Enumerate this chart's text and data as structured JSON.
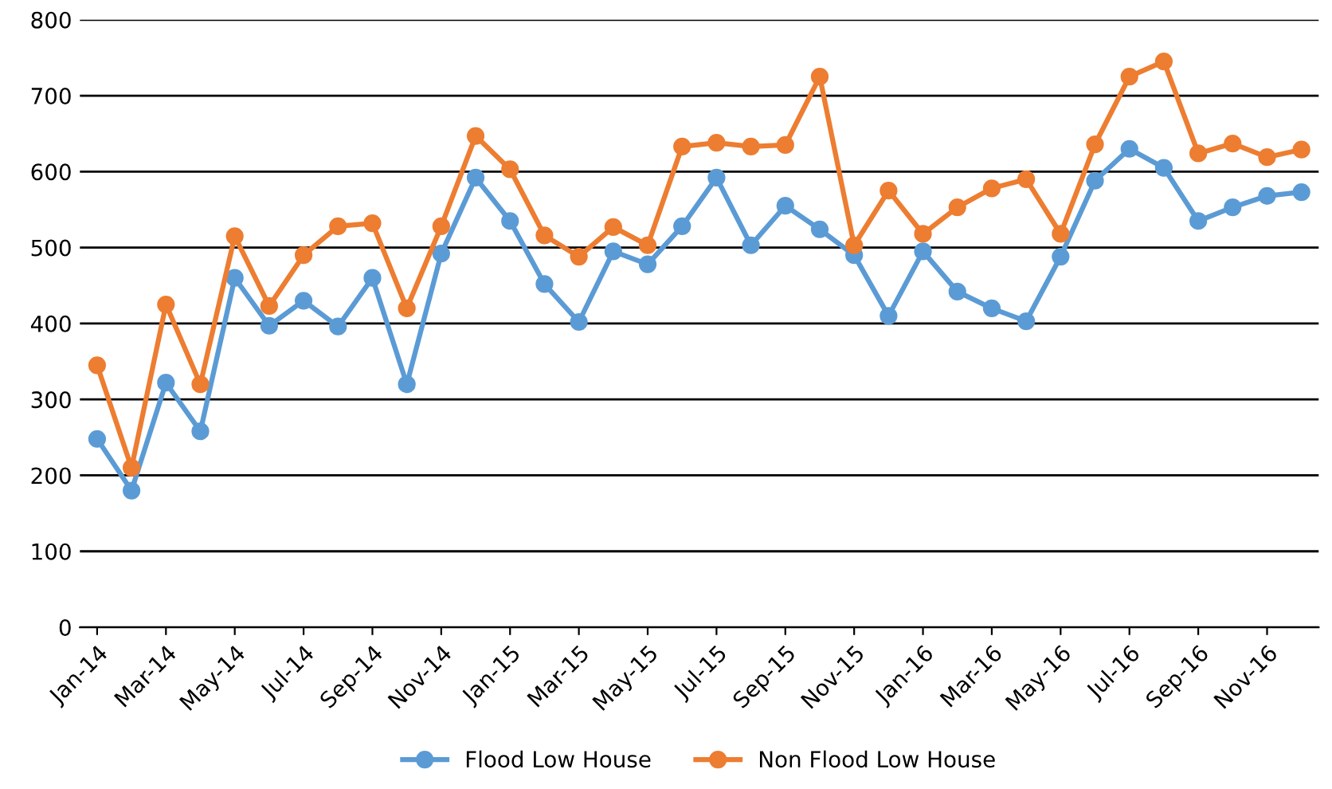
{
  "chart_data": {
    "type": "line",
    "categories": [
      "Jan-14",
      null,
      "Mar-14",
      null,
      "May-14",
      null,
      "Jul-14",
      null,
      "Sep-14",
      null,
      "Nov-14",
      null,
      "Jan-15",
      null,
      "Mar-15",
      null,
      "May-15",
      null,
      "Jul-15",
      null,
      "Sep-15",
      null,
      "Nov-15",
      null,
      "Jan-16",
      null,
      "Mar-16",
      null,
      "May-16",
      null,
      "Jul-16",
      null,
      "Sep-16",
      null,
      "Nov-16",
      null
    ],
    "series": [
      {
        "name": "Flood Low House",
        "color": "#5b9bd5",
        "values": [
          248,
          180,
          322,
          258,
          460,
          397,
          430,
          396,
          460,
          320,
          492,
          592,
          535,
          452,
          402,
          495,
          478,
          528,
          592,
          503,
          555,
          524,
          490,
          410,
          495,
          442,
          420,
          403,
          488,
          588,
          630,
          605,
          535,
          553,
          568,
          573
        ]
      },
      {
        "name": "Non Flood Low House",
        "color": "#ed7d31",
        "values": [
          345,
          210,
          425,
          320,
          515,
          423,
          490,
          528,
          532,
          420,
          528,
          647,
          603,
          516,
          488,
          527,
          503,
          633,
          638,
          633,
          635,
          725,
          503,
          575,
          518,
          553,
          578,
          590,
          518,
          636,
          725,
          745,
          624,
          637,
          619,
          629
        ]
      }
    ],
    "ylim": [
      0,
      800
    ],
    "yticks": [
      0,
      100,
      200,
      300,
      400,
      500,
      600,
      700,
      800
    ],
    "grid": "y",
    "legend": "bottom",
    "marker": "circle",
    "line_style": "solid"
  }
}
